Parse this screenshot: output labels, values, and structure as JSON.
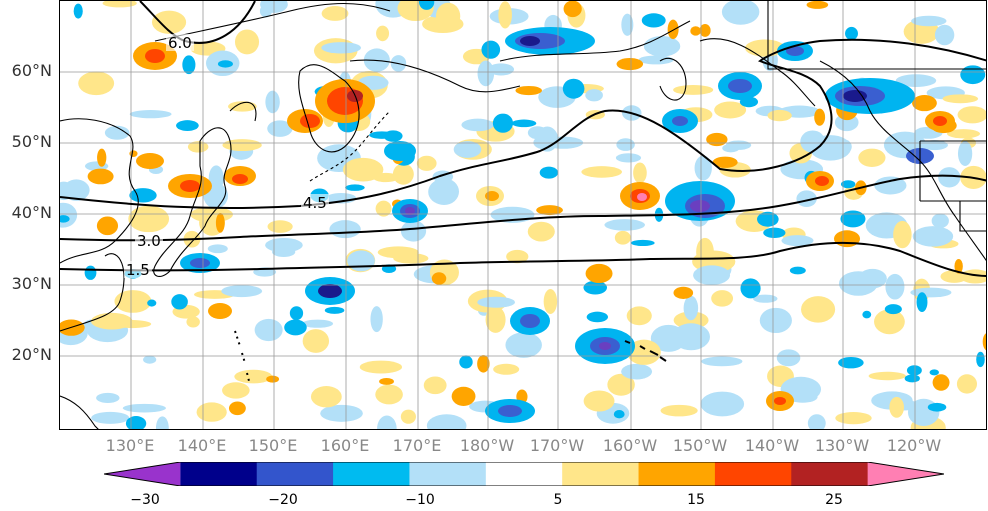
{
  "latitude_labels": [
    "60°N",
    "50°N",
    "40°N",
    "30°N",
    "20°N"
  ],
  "longitude_labels": [
    "130°E",
    "140°E",
    "150°E",
    "160°E",
    "170°E",
    "180°W",
    "170°W",
    "160°W",
    "150°W",
    "140°W",
    "130°W",
    "120°W"
  ],
  "contours": [
    {
      "label": "6.0"
    },
    {
      "label": "4.5"
    },
    {
      "label": "3.0"
    },
    {
      "label": "1.5"
    }
  ],
  "colorbar": {
    "tick_labels": [
      "−30",
      "−20",
      "−10",
      "5",
      "15",
      "25"
    ],
    "colors": [
      "#9933cc",
      "#00008b",
      "#3355cc",
      "#00bbf0",
      "#b3e0f8",
      "#ffffff",
      "#ffe68a",
      "#ffa500",
      "#ff4500",
      "#b22222",
      "#ff7fb3"
    ]
  },
  "anomaly_palette": {
    "deep_purple": "#6a3fc0",
    "navy": "#1a1a8c",
    "blue": "#3a5fd0",
    "cyan": "#00b4f0",
    "light_blue": "#b3e0f8",
    "yellow": "#ffe68a",
    "orange": "#ffa500",
    "red_orange": "#ff4500",
    "dark_red": "#b22222",
    "pink": "#ff7fb3"
  }
}
